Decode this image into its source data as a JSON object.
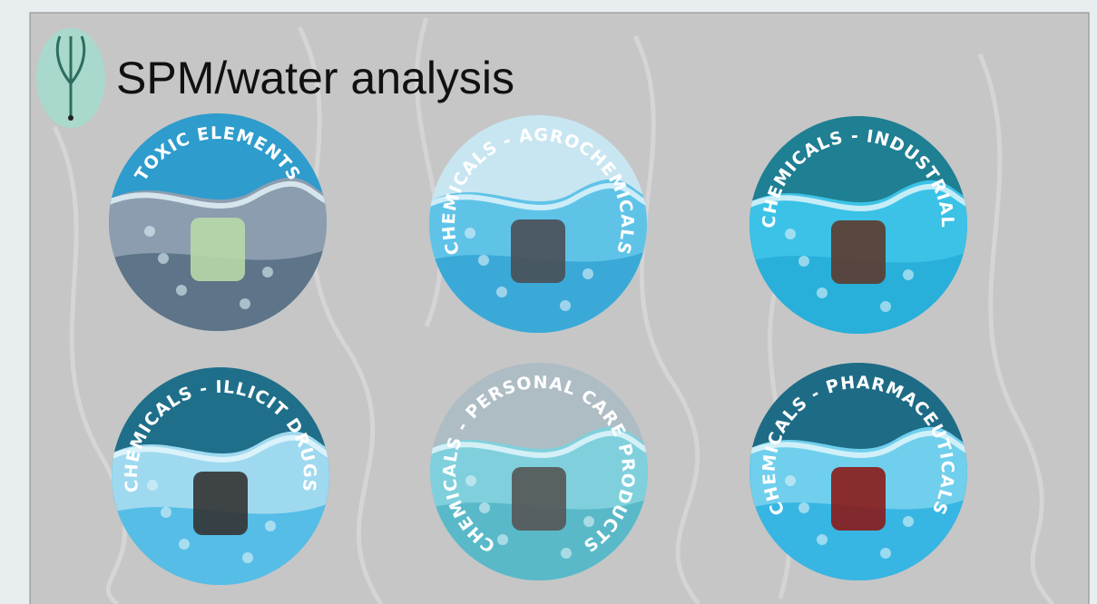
{
  "slide": {
    "title": "SPM/water analysis",
    "badges": [
      {
        "label": "TOXIC ELEMENTS"
      },
      {
        "label": "CHEMICALS - AGROCHEMICALS"
      },
      {
        "label": "CHEMICALS - INDUSTRIAL"
      },
      {
        "label": "CHEMICALS - ILLICIT DRUGS"
      },
      {
        "label": "CHEMICALS - PERSONAL CARE PRODUCTS"
      },
      {
        "label": "CHEMICALS - PHARMACEUTICALS"
      }
    ]
  }
}
